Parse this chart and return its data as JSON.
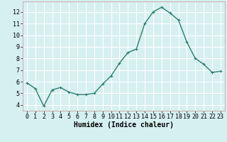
{
  "x": [
    0,
    1,
    2,
    3,
    4,
    5,
    6,
    7,
    8,
    9,
    10,
    11,
    12,
    13,
    14,
    15,
    16,
    17,
    18,
    19,
    20,
    21,
    22,
    23
  ],
  "y": [
    5.9,
    5.4,
    3.9,
    5.3,
    5.5,
    5.1,
    4.9,
    4.9,
    5.0,
    5.8,
    6.5,
    7.6,
    8.5,
    8.8,
    11.0,
    12.0,
    12.4,
    11.9,
    11.3,
    9.4,
    8.0,
    7.5,
    6.8,
    6.9
  ],
  "line_color": "#2e7d6e",
  "marker": "+",
  "marker_size": 3,
  "bg_color": "#d6f0f0",
  "grid_color": "#ffffff",
  "grid_minor_color": "#e8f8f8",
  "xlabel": "Humidex (Indice chaleur)",
  "xlabel_fontsize": 7,
  "xlim": [
    -0.5,
    23.5
  ],
  "ylim": [
    3.5,
    12.9
  ],
  "yticks": [
    4,
    5,
    6,
    7,
    8,
    9,
    10,
    11,
    12
  ],
  "xticks": [
    0,
    1,
    2,
    3,
    4,
    5,
    6,
    7,
    8,
    9,
    10,
    11,
    12,
    13,
    14,
    15,
    16,
    17,
    18,
    19,
    20,
    21,
    22,
    23
  ],
  "tick_fontsize": 6,
  "line_width": 1.0,
  "spine_color": "#2e7d6e"
}
